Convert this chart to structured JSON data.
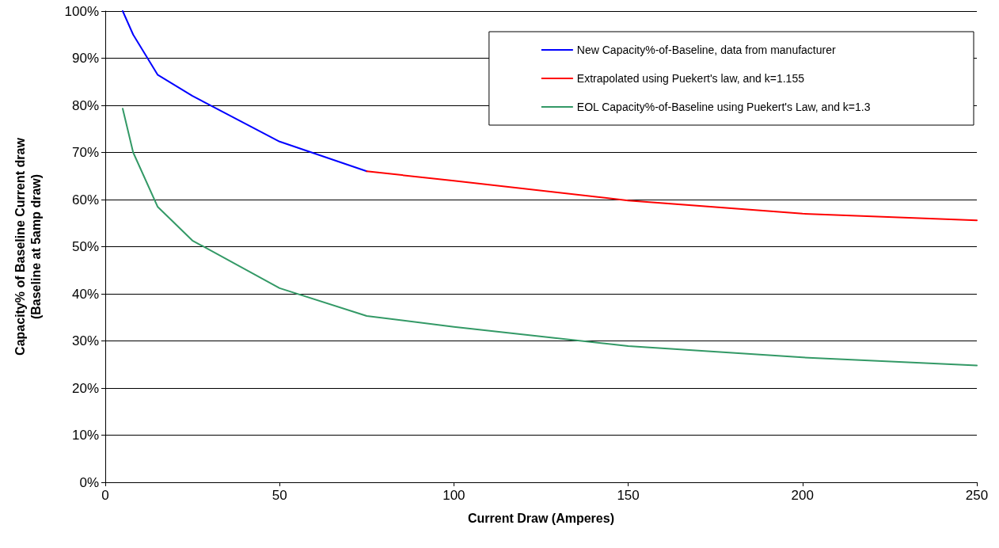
{
  "chart_data": {
    "type": "line",
    "xlabel": "Current Draw (Amperes)",
    "ylabel": "Capacity% of Baseline Current draw\n(Baseline at 5amp draw)",
    "xlim": [
      0,
      250
    ],
    "xticks": [
      0,
      50,
      100,
      150,
      200,
      250
    ],
    "ylim": [
      0,
      100
    ],
    "yticks": [
      {
        "value": 0,
        "label": "0%"
      },
      {
        "value": 10,
        "label": "10%"
      },
      {
        "value": 20,
        "label": "20%"
      },
      {
        "value": 30,
        "label": "30%"
      },
      {
        "value": 40,
        "label": "40%"
      },
      {
        "value": 50,
        "label": "50%"
      },
      {
        "value": 60,
        "label": "60%"
      },
      {
        "value": 70,
        "label": "70%"
      },
      {
        "value": 80,
        "label": "80%"
      },
      {
        "value": 90,
        "label": "90%"
      },
      {
        "value": 100,
        "label": "100%"
      }
    ],
    "grid": "y",
    "legend": "top right",
    "marker": "none",
    "line_style": "solid",
    "series": [
      {
        "name": "New Capacity%-of-Baseline, data from manufacturer",
        "color": "#0000ff",
        "x": [
          5,
          8,
          15,
          25,
          50,
          75
        ],
        "values": [
          100,
          95,
          86.5,
          82,
          72.3,
          66
        ]
      },
      {
        "name": "Extrapolated using Puekert's law, and k=1.155",
        "color": "#ff0000",
        "x": [
          75,
          100,
          150,
          200,
          250
        ],
        "values": [
          66,
          64,
          59.8,
          57,
          55.6
        ]
      },
      {
        "name": "EOL Capacity%-of-Baseline using Puekert's Law, and k=1.3",
        "color": "#339966",
        "x": [
          5,
          8,
          15,
          25,
          50,
          75,
          100,
          150,
          200,
          250
        ],
        "values": [
          79.3,
          70,
          58.5,
          51.3,
          41.2,
          35.3,
          33,
          28.9,
          26.5,
          24.8
        ]
      }
    ]
  }
}
